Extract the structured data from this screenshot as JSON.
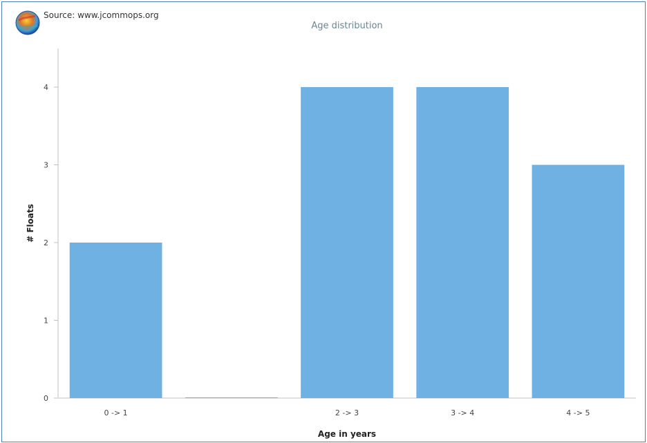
{
  "source": "Source: www.jcommops.org",
  "colors": {
    "bar": "#70b1e4",
    "title": "#6b8591",
    "frame": "#4a7ebb"
  },
  "chart_data": {
    "type": "bar",
    "title": "Age distribution",
    "categories": [
      "0 -> 1",
      "",
      "2 -> 3",
      "3 -> 4",
      "4 -> 5"
    ],
    "values": [
      2,
      0,
      4,
      4,
      3
    ],
    "xlabel": "Age in years",
    "ylabel": "# Floats",
    "ylim": [
      0,
      4.5
    ],
    "yticks": [
      "0",
      "1",
      "2",
      "3",
      "4"
    ],
    "grid": false,
    "legend": "none"
  }
}
